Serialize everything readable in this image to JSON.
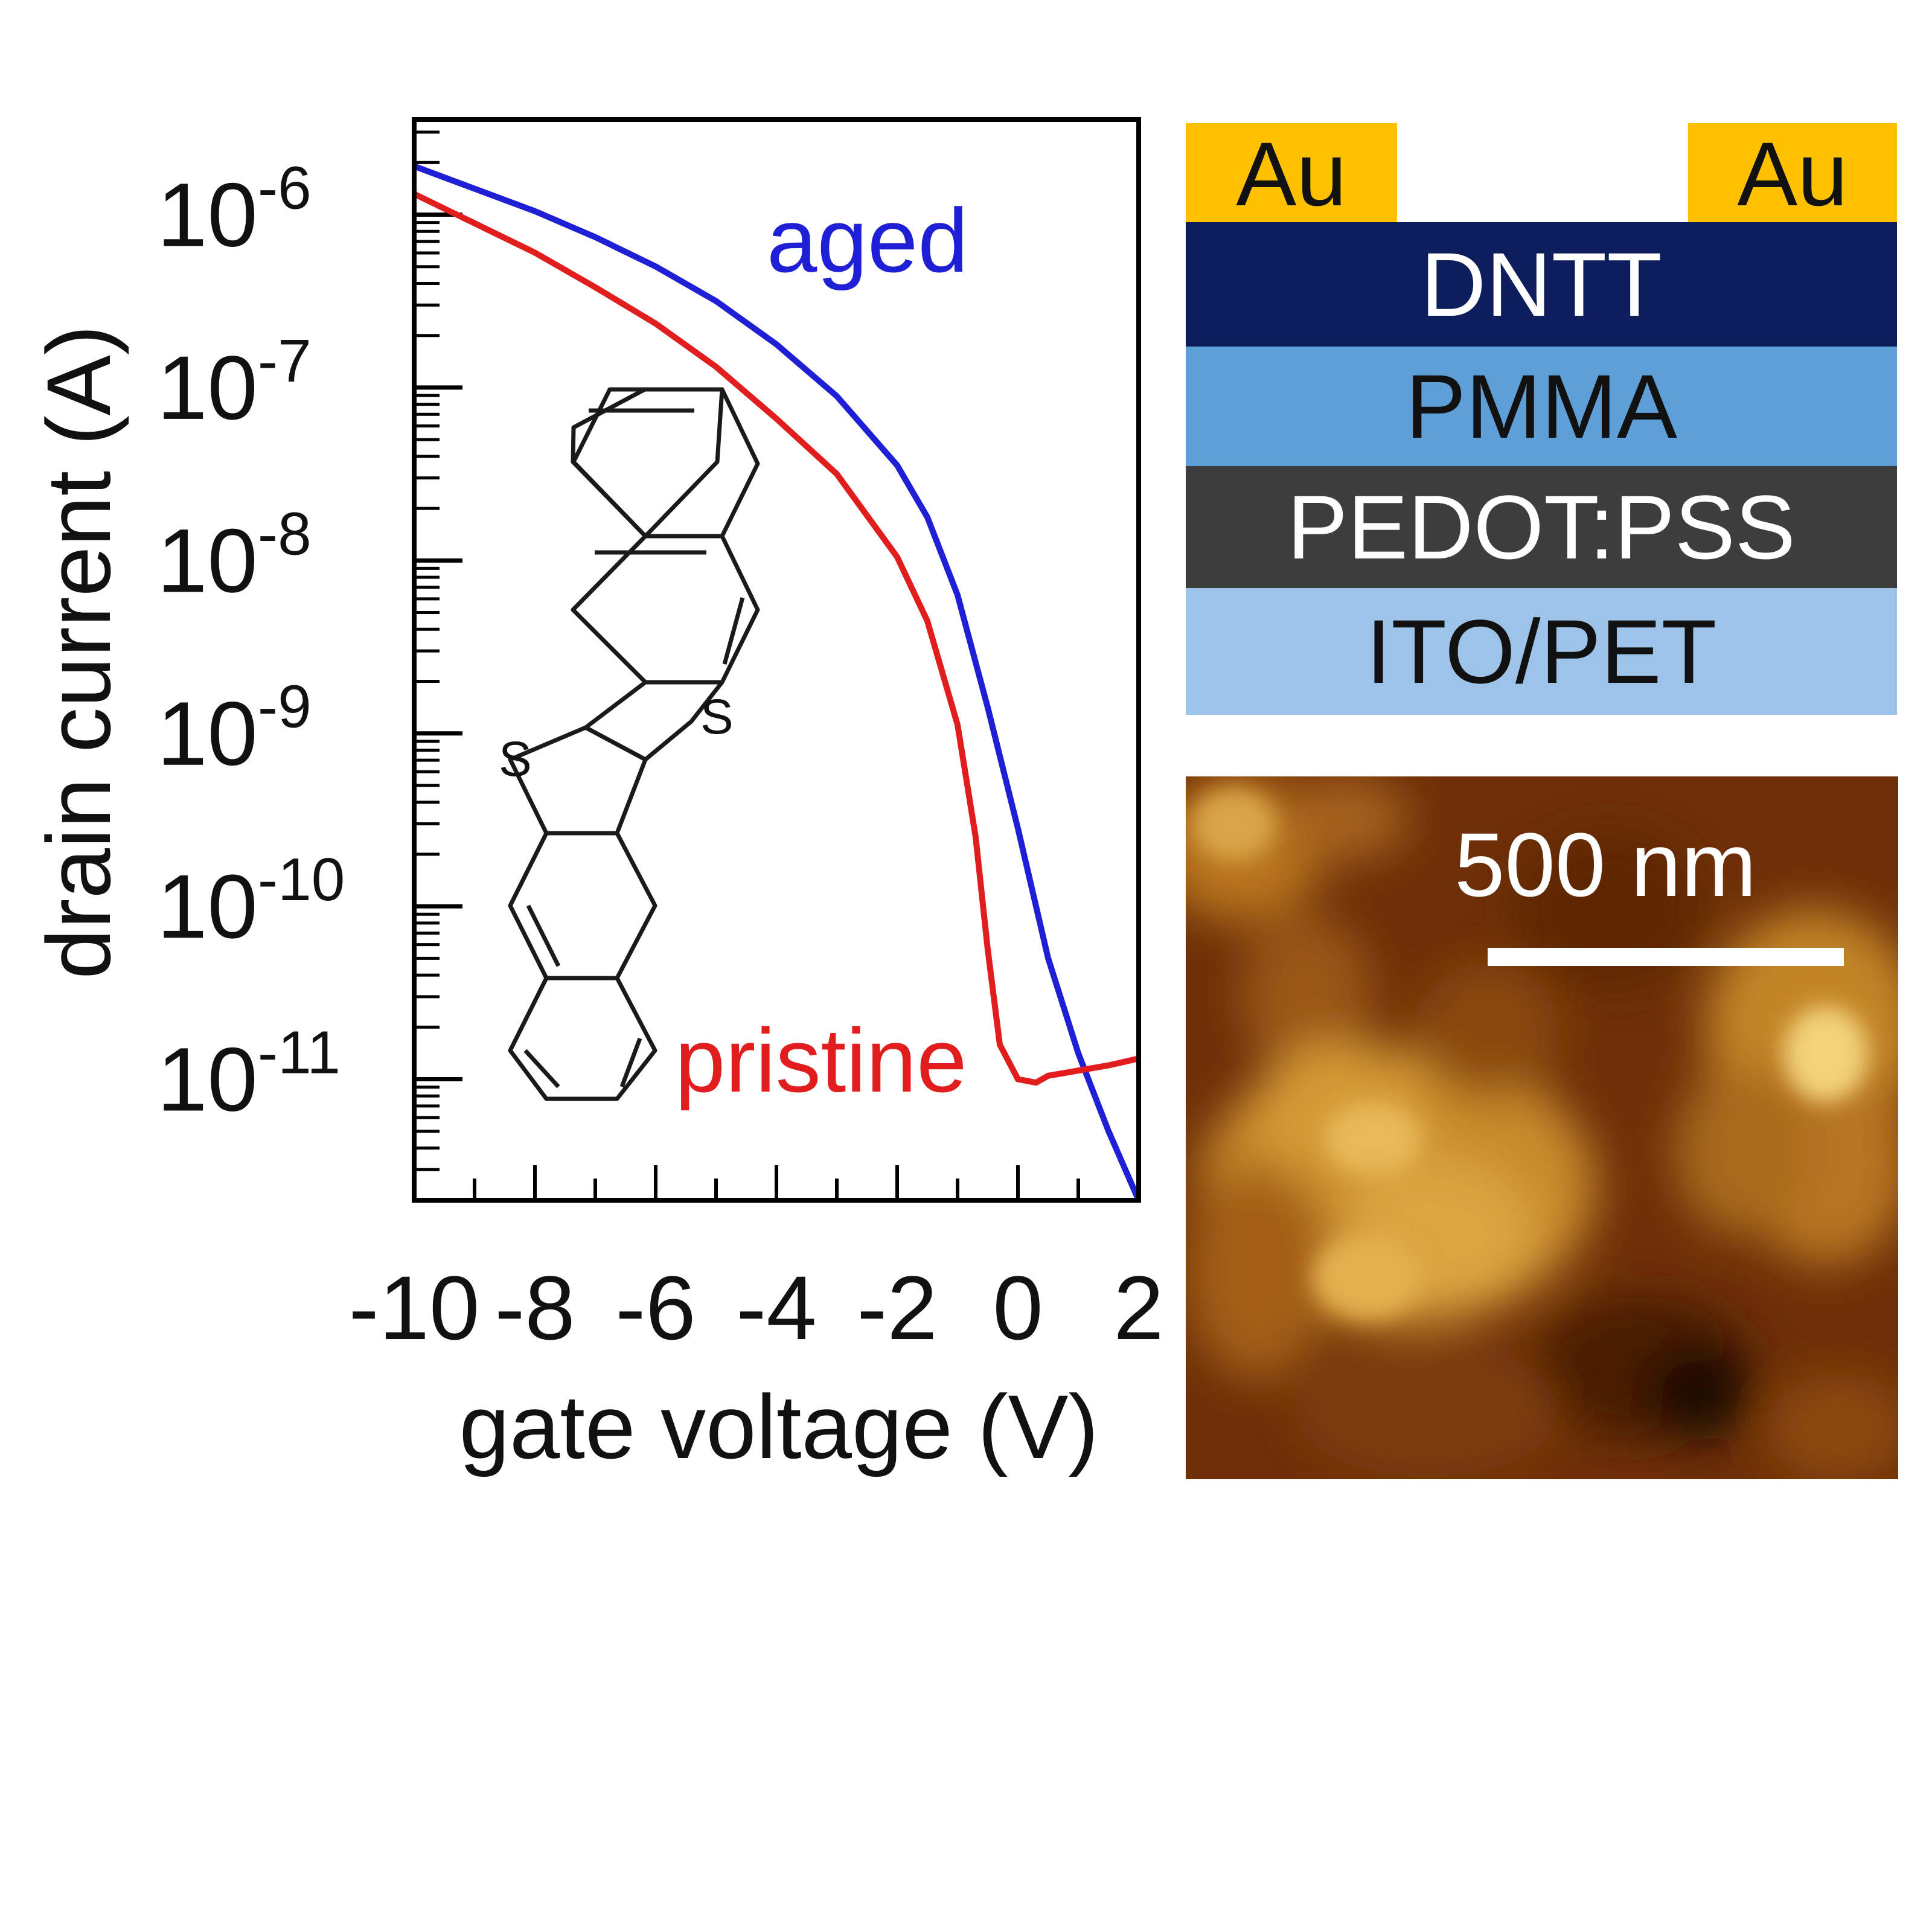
{
  "chart_data": {
    "type": "line",
    "xlabel": "gate voltage (V)",
    "ylabel": "drain current (A)",
    "xlim": [
      -10,
      2
    ],
    "ylim_log10": [
      -11.7,
      -5.45
    ],
    "y_scale": "log",
    "x_tick_labels": [
      "-10",
      "-8",
      "-6",
      "-4",
      "-2",
      "0",
      "2"
    ],
    "x_ticks": [
      -10,
      -8,
      -6,
      -4,
      -2,
      0,
      2
    ],
    "y_tick_exponents": [
      "-6",
      "-7",
      "-8",
      "-9",
      "-10",
      "-11"
    ],
    "y_ticks_log10": [
      -6,
      -7,
      -8,
      -9,
      -10,
      -11
    ],
    "y_tick_base": "10",
    "series": [
      {
        "name": "aged",
        "color": "#1f1fd6",
        "x": [
          -10,
          -9,
          -8,
          -7,
          -6,
          -5,
          -4,
          -3,
          -2,
          -1.5,
          -1,
          -0.5,
          0,
          0.5,
          1,
          1.5,
          2
        ],
        "log10_y": [
          -5.72,
          -5.85,
          -5.98,
          -6.13,
          -6.3,
          -6.5,
          -6.75,
          -7.05,
          -7.45,
          -7.75,
          -8.2,
          -8.85,
          -9.55,
          -10.3,
          -10.85,
          -11.3,
          -11.7
        ]
      },
      {
        "name": "pristine",
        "color": "#e11d1d",
        "x": [
          -10,
          -9,
          -8,
          -7,
          -6,
          -5,
          -4,
          -3,
          -2,
          -1.5,
          -1,
          -0.7,
          -0.5,
          -0.3,
          0,
          0.3,
          0.5,
          1,
          1.5,
          2
        ],
        "log10_y": [
          -5.88,
          -6.05,
          -6.22,
          -6.42,
          -6.63,
          -6.88,
          -7.18,
          -7.5,
          -7.98,
          -8.35,
          -8.95,
          -9.6,
          -10.25,
          -10.8,
          -11.0,
          -11.02,
          -10.98,
          -10.95,
          -10.92,
          -10.88
        ]
      }
    ]
  },
  "device_stack": {
    "contacts": [
      "Au",
      "Au"
    ],
    "layers": [
      {
        "label": "DNTT",
        "color": "#0d1e5c",
        "text_color": "#ffffff"
      },
      {
        "label": "PMMA",
        "color": "#5f9fd8",
        "text_color": "#111111"
      },
      {
        "label": "PEDOT:PSS",
        "color": "#3d3d3d",
        "text_color": "#ffffff"
      },
      {
        "label": "ITO/PET",
        "color": "#9dc3e8",
        "text_color": "#111111"
      }
    ],
    "contact_color": "#ffc000"
  },
  "afm": {
    "scale_bar_label": "500 nm"
  }
}
